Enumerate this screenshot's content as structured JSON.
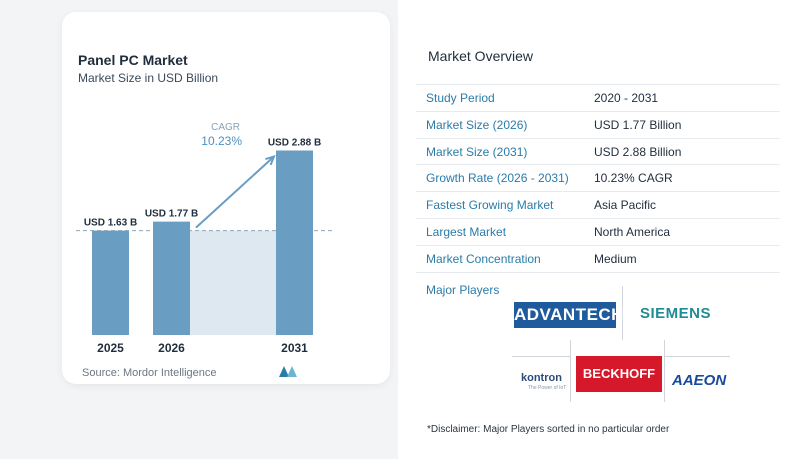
{
  "chart": {
    "title": "Panel PC Market",
    "subtitle": "Market Size in USD Billion",
    "source": "Source: Mordor Intelligence",
    "cagr_label": "CAGR",
    "cagr_value": "10.23%"
  },
  "chart_data": {
    "type": "bar",
    "categories": [
      "2025",
      "2026",
      "2031"
    ],
    "values": [
      1.63,
      1.77,
      2.88
    ],
    "data_labels": [
      "USD 1.63 B",
      "USD 1.77 B",
      "USD 2.88 B"
    ],
    "title": "Panel PC Market",
    "subtitle": "Market Size in USD Billion",
    "xlabel": "",
    "ylabel": "",
    "ylim": [
      0,
      3.2
    ],
    "grid": false,
    "colors": {
      "bar": "#6a9dc2",
      "highlight": "#dde8f1",
      "arrow": "#6a9dc2",
      "dashed_line": "#8fa6b8"
    }
  },
  "overview": {
    "title": "Market Overview",
    "rows": [
      {
        "key": "Study Period",
        "value": "2020 - 2031"
      },
      {
        "key": "Market Size (2026)",
        "value": "USD 1.77 Billion"
      },
      {
        "key": "Market Size (2031)",
        "value": "USD 2.88 Billion"
      },
      {
        "key": "Growth Rate (2026 - 2031)",
        "value": "10.23% CAGR"
      },
      {
        "key": "Fastest Growing Market",
        "value": "Asia Pacific"
      },
      {
        "key": "Largest Market",
        "value": "North America"
      },
      {
        "key": "Market Concentration",
        "value": "Medium"
      }
    ]
  },
  "players": {
    "title": "Major Players",
    "logos": [
      "ADVANTECH",
      "SIEMENS",
      "kontron",
      "BECKHOFF",
      "AAEON"
    ],
    "kontron_tagline": "The Power of IoT"
  },
  "disclaimer": "*Disclaimer: Major Players sorted in no particular order"
}
